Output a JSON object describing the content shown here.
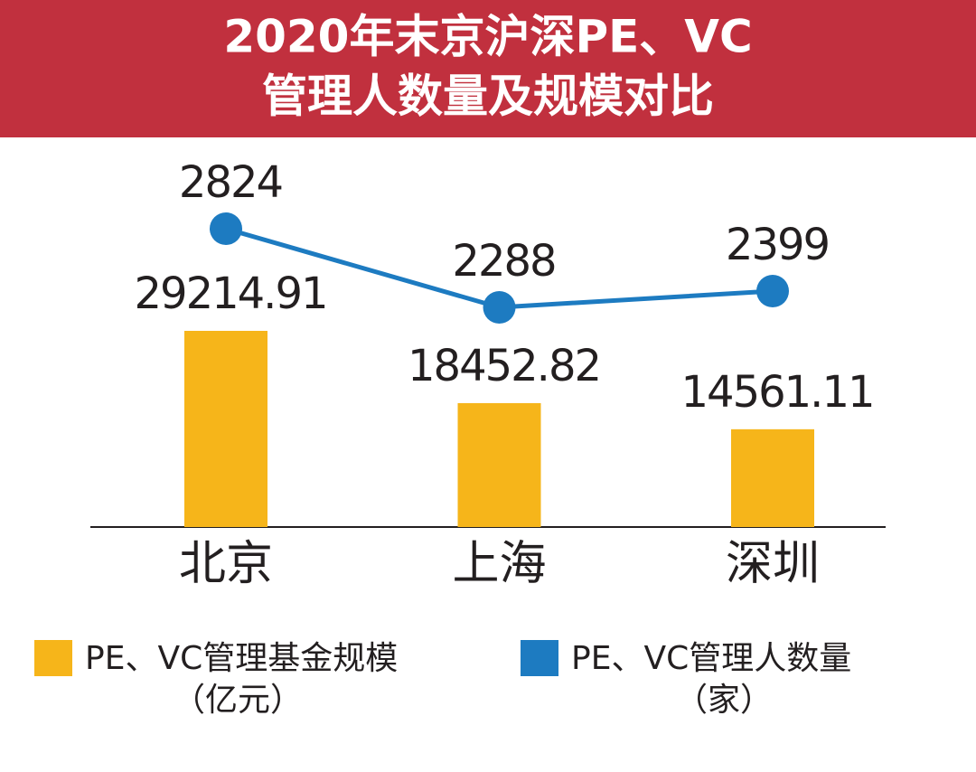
{
  "chart_data": {
    "type": "bar",
    "title": [
      "2020年末京沪深PE、VC",
      "管理人数量及规模对比"
    ],
    "categories": [
      "北京",
      "上海",
      "深圳"
    ],
    "series": [
      {
        "name": "PE、VC管理基金规模",
        "unit": "（亿元）",
        "type": "bar",
        "color": "#f6b51a",
        "values": [
          29214.91,
          18452.82,
          14561.11
        ]
      },
      {
        "name": "PE、VC管理人数量",
        "unit": "（家）",
        "type": "line",
        "color": "#1d7bc1",
        "values": [
          2824,
          2288,
          2399
        ]
      }
    ]
  }
}
